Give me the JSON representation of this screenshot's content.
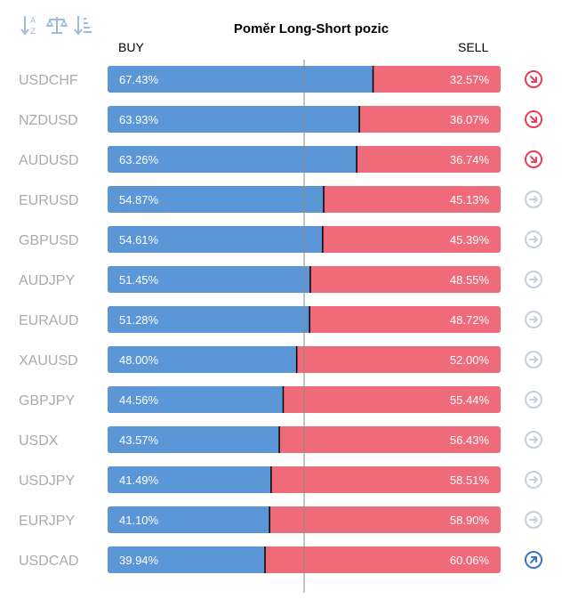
{
  "toolbar": {
    "icons": [
      "sort-alpha-icon",
      "balance-icon",
      "sort-list-icon"
    ]
  },
  "colors": {
    "buy": "#5b96d7",
    "sell": "#f06b7a",
    "center_line": "#888888",
    "divider": "#000000",
    "label": "#aaaaaa",
    "arrow_down": "#e83e55",
    "arrow_neutral": "#c5cfe0",
    "arrow_up": "#3a74c8"
  },
  "chart_data": {
    "type": "bar",
    "title": "Poměr Long-Short pozic",
    "left_label": "BUY",
    "right_label": "SELL",
    "xlim": [
      0,
      100
    ],
    "center_line": 50,
    "categories": [
      "USDCHF",
      "NZDUSD",
      "AUDUSD",
      "EURUSD",
      "GBPUSD",
      "AUDJPY",
      "EURAUD",
      "XAUUSD",
      "GBPJPY",
      "USDX",
      "USDJPY",
      "EURJPY",
      "USDCAD"
    ],
    "series": [
      {
        "name": "BUY",
        "values": [
          67.43,
          63.93,
          63.26,
          54.87,
          54.61,
          51.45,
          51.28,
          48.0,
          44.56,
          43.57,
          41.49,
          41.1,
          39.94
        ],
        "labels": [
          "67.43%",
          "63.93%",
          "63.26%",
          "54.87%",
          "54.61%",
          "51.45%",
          "51.28%",
          "48.00%",
          "44.56%",
          "43.57%",
          "41.49%",
          "41.10%",
          "39.94%"
        ]
      },
      {
        "name": "SELL",
        "values": [
          32.57,
          36.07,
          36.74,
          45.13,
          45.39,
          48.55,
          48.72,
          52.0,
          55.44,
          56.43,
          58.51,
          58.9,
          60.06
        ],
        "labels": [
          "32.57%",
          "36.07%",
          "36.74%",
          "45.13%",
          "45.39%",
          "48.55%",
          "48.72%",
          "52.00%",
          "55.44%",
          "56.43%",
          "58.51%",
          "58.90%",
          "60.06%"
        ]
      }
    ],
    "trend": [
      "down",
      "down",
      "down",
      "neutral",
      "neutral",
      "neutral",
      "neutral",
      "neutral",
      "neutral",
      "neutral",
      "neutral",
      "neutral",
      "up"
    ]
  }
}
